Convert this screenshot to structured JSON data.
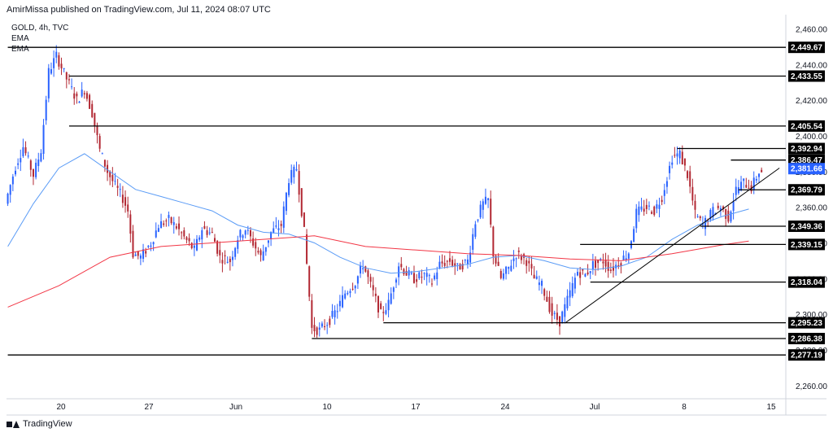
{
  "header": {
    "text": "AmirMissa published on TradingView.com, Jul 11, 2024 08:07 UTC"
  },
  "legend": {
    "symbol": "GOLD, 4h, TVC",
    "ema1": "EMA",
    "ema2": "EMA"
  },
  "footer": {
    "brand": "TradingView"
  },
  "colors": {
    "up": "#2962ff",
    "down": "#b22833",
    "ema_fast": "#5b9cf6",
    "ema_slow": "#f23645",
    "current_price_bg": "#2962ff",
    "level_tag_bg": "#000000"
  },
  "chart_data": {
    "type": "candlestick",
    "symbol": "GOLD",
    "timeframe": "4h",
    "source": "TVC",
    "ylim": [
      2254,
      2468
    ],
    "y_ticks": [
      2260,
      2280,
      2300,
      2320,
      2340,
      2360,
      2380,
      2400,
      2420,
      2440,
      2460
    ],
    "y_tick_labels": [
      "2,260.00",
      "2,280.00",
      "2,300.00",
      "2,320.00",
      "2,340.00",
      "2,360.00",
      "2,380.00",
      "2,400.00",
      "2,420.00",
      "2,440.00",
      "2,460.00"
    ],
    "x_labels": [
      "20",
      "27",
      "Jun",
      "10",
      "17",
      "24",
      "Jul",
      "8",
      "15"
    ],
    "price_path": [
      [
        0,
        2362
      ],
      [
        4,
        2383
      ],
      [
        7,
        2394
      ],
      [
        11,
        2378
      ],
      [
        14,
        2392
      ],
      [
        17,
        2436
      ],
      [
        20,
        2445
      ],
      [
        24,
        2432
      ],
      [
        28,
        2420
      ],
      [
        31,
        2426
      ],
      [
        34,
        2413
      ],
      [
        37,
        2392
      ],
      [
        40,
        2380
      ],
      [
        43,
        2372
      ],
      [
        46,
        2365
      ],
      [
        48,
        2358
      ],
      [
        50,
        2334
      ],
      [
        53,
        2332
      ],
      [
        57,
        2340
      ],
      [
        60,
        2350
      ],
      [
        64,
        2353
      ],
      [
        67,
        2349
      ],
      [
        70,
        2343
      ],
      [
        74,
        2336
      ],
      [
        77,
        2348
      ],
      [
        81,
        2345
      ],
      [
        84,
        2332
      ],
      [
        88,
        2330
      ],
      [
        91,
        2343
      ],
      [
        94,
        2348
      ],
      [
        97,
        2340
      ],
      [
        100,
        2332
      ],
      [
        104,
        2346
      ],
      [
        108,
        2350
      ],
      [
        111,
        2376
      ],
      [
        114,
        2382
      ],
      [
        117,
        2346
      ],
      [
        120,
        2292
      ],
      [
        123,
        2291
      ],
      [
        127,
        2297
      ],
      [
        130,
        2303
      ],
      [
        133,
        2312
      ],
      [
        137,
        2318
      ],
      [
        140,
        2328
      ],
      [
        143,
        2316
      ],
      [
        147,
        2300
      ],
      [
        150,
        2306
      ],
      [
        154,
        2328
      ],
      [
        157,
        2323
      ],
      [
        160,
        2320
      ],
      [
        164,
        2322
      ],
      [
        167,
        2318
      ],
      [
        170,
        2328
      ],
      [
        174,
        2330
      ],
      [
        177,
        2326
      ],
      [
        181,
        2330
      ],
      [
        184,
        2352
      ],
      [
        187,
        2362
      ],
      [
        189,
        2364
      ],
      [
        191,
        2334
      ],
      [
        194,
        2320
      ],
      [
        197,
        2326
      ],
      [
        200,
        2334
      ],
      [
        204,
        2330
      ],
      [
        207,
        2320
      ],
      [
        210,
        2316
      ],
      [
        214,
        2300
      ],
      [
        217,
        2296
      ],
      [
        220,
        2308
      ],
      [
        224,
        2324
      ],
      [
        227,
        2322
      ],
      [
        230,
        2328
      ],
      [
        234,
        2330
      ],
      [
        237,
        2325
      ],
      [
        241,
        2330
      ],
      [
        244,
        2335
      ],
      [
        247,
        2357
      ],
      [
        251,
        2360
      ],
      [
        254,
        2358
      ],
      [
        257,
        2366
      ],
      [
        261,
        2388
      ],
      [
        264,
        2390
      ],
      [
        267,
        2378
      ],
      [
        270,
        2356
      ],
      [
        273,
        2350
      ],
      [
        277,
        2358
      ],
      [
        280,
        2360
      ],
      [
        283,
        2354
      ],
      [
        286,
        2370
      ],
      [
        289,
        2374
      ],
      [
        292,
        2371
      ],
      [
        295,
        2380
      ]
    ],
    "series": [
      {
        "name": "EMA",
        "color": "#5b9cf6",
        "points": [
          [
            0,
            2338
          ],
          [
            10,
            2362
          ],
          [
            20,
            2382
          ],
          [
            30,
            2390
          ],
          [
            40,
            2380
          ],
          [
            50,
            2370
          ],
          [
            60,
            2366
          ],
          [
            70,
            2362
          ],
          [
            80,
            2358
          ],
          [
            90,
            2350
          ],
          [
            100,
            2346
          ],
          [
            110,
            2345
          ],
          [
            120,
            2340
          ],
          [
            130,
            2332
          ],
          [
            140,
            2326
          ],
          [
            150,
            2323
          ],
          [
            160,
            2324
          ],
          [
            170,
            2326
          ],
          [
            180,
            2328
          ],
          [
            190,
            2332
          ],
          [
            200,
            2333
          ],
          [
            210,
            2330
          ],
          [
            220,
            2326
          ],
          [
            230,
            2325
          ],
          [
            240,
            2327
          ],
          [
            250,
            2332
          ],
          [
            260,
            2342
          ],
          [
            270,
            2350
          ],
          [
            280,
            2355
          ],
          [
            290,
            2359
          ]
        ]
      },
      {
        "name": "EMA",
        "color": "#f23645",
        "points": [
          [
            0,
            2304
          ],
          [
            20,
            2316
          ],
          [
            40,
            2332
          ],
          [
            60,
            2338
          ],
          [
            80,
            2340
          ],
          [
            100,
            2342
          ],
          [
            120,
            2344
          ],
          [
            140,
            2338
          ],
          [
            160,
            2336
          ],
          [
            180,
            2334
          ],
          [
            200,
            2333
          ],
          [
            220,
            2331
          ],
          [
            240,
            2330
          ],
          [
            260,
            2334
          ],
          [
            280,
            2339
          ],
          [
            290,
            2341
          ]
        ]
      }
    ],
    "horizontal_levels": [
      {
        "label": "2,449.67",
        "value": 2449.67,
        "x_start": 0,
        "color": "#000000"
      },
      {
        "label": "2,433.55",
        "value": 2433.55,
        "x_start": 24,
        "color": "#000000"
      },
      {
        "label": "2,405.54",
        "value": 2405.54,
        "x_start": 24,
        "color": "#000000"
      },
      {
        "label": "2,392.94",
        "value": 2392.94,
        "x_start": 262,
        "color": "#000000"
      },
      {
        "label": "2,386.47",
        "value": 2386.47,
        "x_start": 283,
        "color": "#000000"
      },
      {
        "label": "2,381.66",
        "value": 2381.66,
        "x_start": 295,
        "color": "#2962ff"
      },
      {
        "label": "2,369.79",
        "value": 2369.79,
        "x_start": 286,
        "color": "#000000"
      },
      {
        "label": "2,349.36",
        "value": 2349.36,
        "x_start": 271,
        "color": "#000000"
      },
      {
        "label": "2,339.15",
        "value": 2339.15,
        "x_start": 224,
        "color": "#000000"
      },
      {
        "label": "2,318.04",
        "value": 2318.04,
        "x_start": 228,
        "color": "#000000"
      },
      {
        "label": "2,295.23",
        "value": 2295.23,
        "x_start": 147,
        "color": "#000000"
      },
      {
        "label": "2,286.38",
        "value": 2286.38,
        "x_start": 119,
        "color": "#000000"
      },
      {
        "label": "2,277.19",
        "value": 2277.19,
        "x_start": 0,
        "color": "#000000"
      }
    ],
    "trendline": {
      "from": [
        218,
        2295
      ],
      "to": [
        302,
        2382
      ]
    },
    "current_price": "2,381.66"
  }
}
